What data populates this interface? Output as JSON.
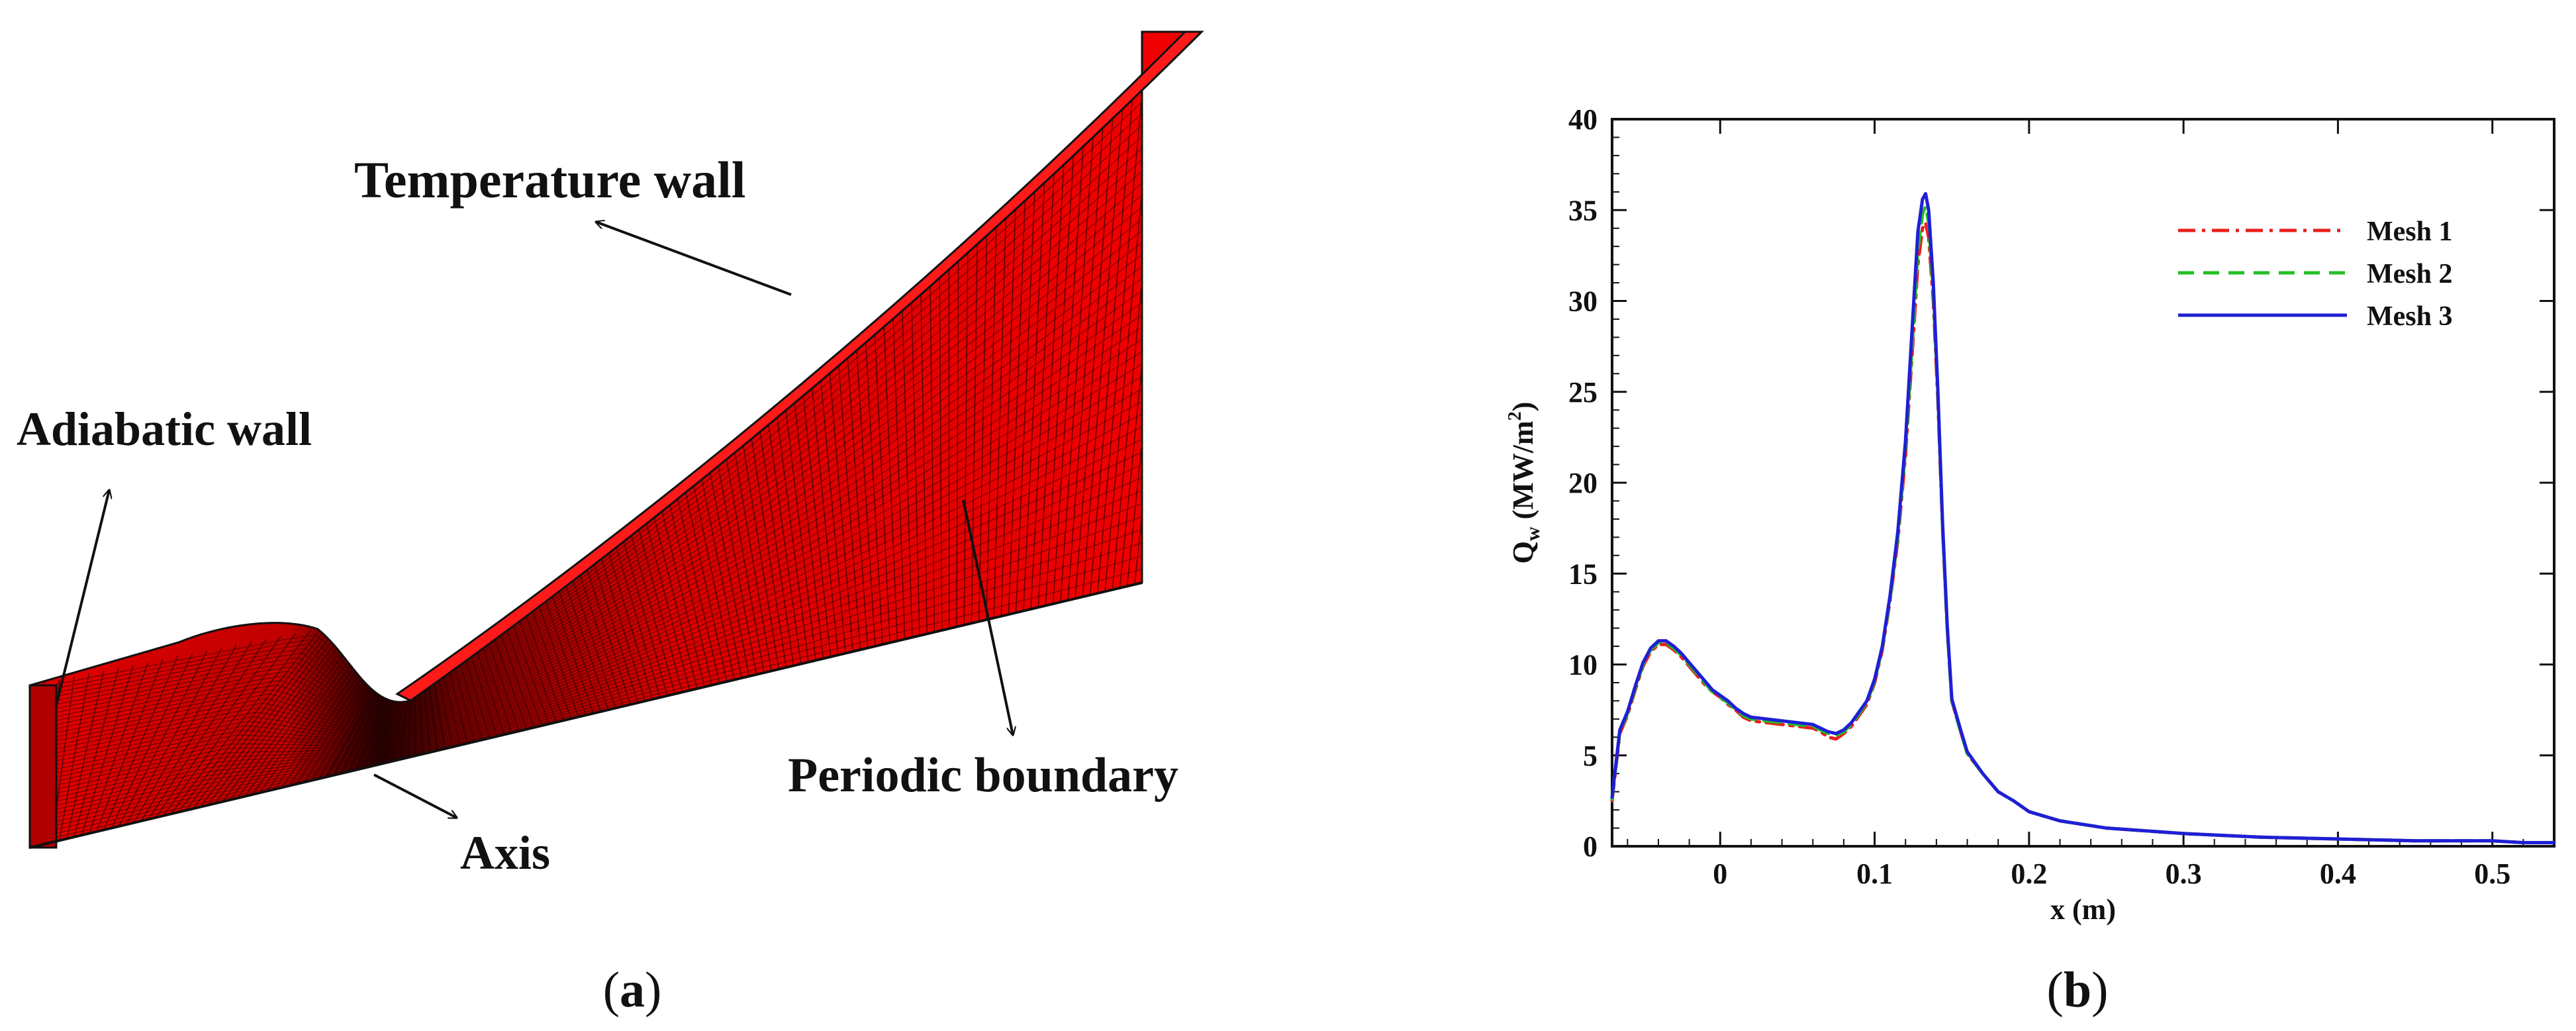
{
  "panel_a": {
    "tag": "a",
    "labels": {
      "temperature_wall": "Temperature wall",
      "adiabatic_wall": "Adiabatic wall",
      "axis": "Axis",
      "periodic_boundary": "Periodic boundary"
    },
    "colors": {
      "mesh_fill": "#e30000",
      "mesh_lines": "#2a0000"
    }
  },
  "panel_b": {
    "tag": "b"
  },
  "chart_data": {
    "type": "line",
    "title": "",
    "xlabel": "x (m)",
    "ylabel": {
      "base": "Q",
      "sub": "w",
      "unit_open": " (MW/m",
      "sup": "2",
      "unit_close": ")"
    },
    "xlim": [
      -0.07,
      0.54
    ],
    "ylim": [
      0,
      40
    ],
    "xticks": [
      0,
      0.1,
      0.2,
      0.3,
      0.4,
      0.5
    ],
    "xtick_labels": [
      "0",
      "0.1",
      "0.2",
      "0.3",
      "0.4",
      "0.5"
    ],
    "yticks": [
      0,
      5,
      10,
      15,
      20,
      25,
      30,
      35,
      40
    ],
    "ytick_labels": [
      "0",
      "5",
      "10",
      "15",
      "20",
      "25",
      "30",
      "35",
      "40"
    ],
    "grid": false,
    "legend_position": "top-right",
    "series": [
      {
        "name": "Mesh 1",
        "color": "#e8201a",
        "dash": "dashdot",
        "x": [
          -0.07,
          -0.065,
          -0.06,
          -0.055,
          -0.05,
          -0.045,
          -0.04,
          -0.035,
          -0.03,
          -0.025,
          -0.02,
          -0.015,
          -0.01,
          -0.005,
          0,
          0.005,
          0.01,
          0.015,
          0.02,
          0.03,
          0.04,
          0.05,
          0.06,
          0.065,
          0.07,
          0.075,
          0.08,
          0.085,
          0.09,
          0.095,
          0.1,
          0.105,
          0.11,
          0.115,
          0.12,
          0.125,
          0.128,
          0.131,
          0.133,
          0.135,
          0.138,
          0.141,
          0.144,
          0.147,
          0.15,
          0.155,
          0.16,
          0.17,
          0.18,
          0.19,
          0.2,
          0.22,
          0.25,
          0.3,
          0.35,
          0.4,
          0.45,
          0.5,
          0.52,
          0.54
        ],
        "y": [
          2.5,
          6.2,
          7.2,
          8.6,
          9.9,
          10.7,
          11.1,
          11.1,
          10.8,
          10.4,
          9.9,
          9.4,
          8.9,
          8.5,
          8.2,
          7.8,
          7.5,
          7.1,
          6.9,
          6.8,
          6.7,
          6.6,
          6.5,
          6.3,
          6.0,
          5.9,
          6.2,
          6.6,
          7.2,
          7.8,
          9.0,
          10.8,
          13.5,
          16.8,
          21.5,
          28.0,
          32.0,
          34.0,
          34.3,
          33.5,
          30.0,
          24.5,
          17.5,
          12.0,
          8.0,
          6.5,
          5.1,
          4.0,
          3.0,
          2.5,
          1.9,
          1.4,
          1.0,
          0.7,
          0.5,
          0.4,
          0.3,
          0.3,
          0.2,
          0.2
        ]
      },
      {
        "name": "Mesh 2",
        "color": "#22c022",
        "dash": "dashed",
        "x": [
          -0.07,
          -0.065,
          -0.06,
          -0.055,
          -0.05,
          -0.045,
          -0.04,
          -0.035,
          -0.03,
          -0.025,
          -0.02,
          -0.015,
          -0.01,
          -0.005,
          0,
          0.005,
          0.01,
          0.015,
          0.02,
          0.03,
          0.04,
          0.05,
          0.06,
          0.065,
          0.07,
          0.075,
          0.08,
          0.085,
          0.09,
          0.095,
          0.1,
          0.105,
          0.11,
          0.115,
          0.12,
          0.125,
          0.128,
          0.131,
          0.133,
          0.135,
          0.138,
          0.141,
          0.144,
          0.147,
          0.15,
          0.155,
          0.16,
          0.17,
          0.18,
          0.19,
          0.2,
          0.22,
          0.25,
          0.3,
          0.35,
          0.4,
          0.45,
          0.5,
          0.52,
          0.54
        ],
        "y": [
          2.6,
          6.3,
          7.3,
          8.7,
          10.0,
          10.8,
          11.2,
          11.2,
          10.9,
          10.5,
          10.0,
          9.5,
          9.0,
          8.5,
          8.2,
          7.9,
          7.5,
          7.2,
          7.0,
          6.9,
          6.8,
          6.7,
          6.6,
          6.4,
          6.2,
          6.1,
          6.3,
          6.7,
          7.3,
          7.9,
          9.1,
          10.9,
          13.6,
          17.0,
          21.8,
          28.5,
          32.8,
          34.8,
          35.2,
          34.3,
          30.5,
          24.8,
          17.6,
          12.0,
          8.0,
          6.5,
          5.1,
          4.0,
          3.0,
          2.5,
          1.9,
          1.4,
          1.0,
          0.7,
          0.5,
          0.4,
          0.3,
          0.3,
          0.2,
          0.2
        ]
      },
      {
        "name": "Mesh 3",
        "color": "#1f1fd6",
        "dash": "solid",
        "x": [
          -0.07,
          -0.065,
          -0.06,
          -0.055,
          -0.05,
          -0.045,
          -0.04,
          -0.035,
          -0.03,
          -0.025,
          -0.02,
          -0.015,
          -0.01,
          -0.005,
          0,
          0.005,
          0.01,
          0.015,
          0.02,
          0.03,
          0.04,
          0.05,
          0.06,
          0.065,
          0.07,
          0.075,
          0.08,
          0.085,
          0.09,
          0.095,
          0.1,
          0.105,
          0.11,
          0.115,
          0.12,
          0.125,
          0.128,
          0.131,
          0.133,
          0.135,
          0.138,
          0.141,
          0.144,
          0.147,
          0.15,
          0.155,
          0.16,
          0.17,
          0.18,
          0.19,
          0.2,
          0.22,
          0.25,
          0.3,
          0.35,
          0.4,
          0.45,
          0.5,
          0.52,
          0.54
        ],
        "y": [
          2.7,
          6.4,
          7.4,
          8.8,
          10.1,
          10.9,
          11.3,
          11.3,
          11.0,
          10.6,
          10.1,
          9.6,
          9.1,
          8.6,
          8.3,
          8.0,
          7.6,
          7.3,
          7.1,
          7.0,
          6.9,
          6.8,
          6.7,
          6.5,
          6.3,
          6.2,
          6.4,
          6.8,
          7.4,
          8.0,
          9.2,
          11.0,
          13.8,
          17.3,
          22.3,
          29.5,
          33.8,
          35.6,
          35.9,
          35.0,
          31.0,
          25.0,
          17.8,
          12.2,
          8.1,
          6.6,
          5.2,
          4.0,
          3.0,
          2.5,
          1.9,
          1.4,
          1.0,
          0.7,
          0.5,
          0.4,
          0.3,
          0.3,
          0.2,
          0.2
        ]
      }
    ]
  }
}
